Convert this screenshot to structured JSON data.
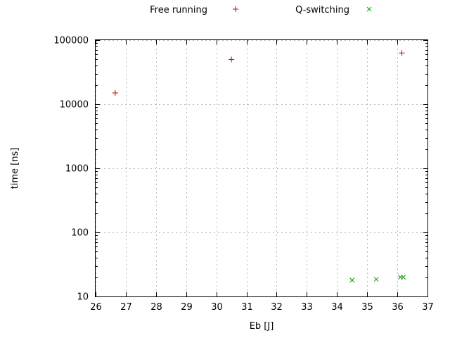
{
  "chart_data": {
    "type": "scatter",
    "title": "",
    "xlabel": "Eb [J]",
    "ylabel": "time [ns]",
    "xlim": [
      26,
      37
    ],
    "ylim": [
      10,
      100000
    ],
    "yscale": "log",
    "grid": true,
    "legend_position": "top-center",
    "xticks": [
      26,
      27,
      28,
      29,
      30,
      31,
      32,
      33,
      34,
      35,
      36,
      37
    ],
    "yticks": [
      10,
      100,
      1000,
      10000,
      100000
    ],
    "ytick_labels": [
      "10",
      "100",
      "1000",
      "10000",
      "100000"
    ],
    "colors": {
      "free_running": "#c00000",
      "q_switching": "#00a000",
      "grid": "#b8b8b8",
      "border": "#000000"
    },
    "series": [
      {
        "name": "Free running",
        "marker": "plus",
        "color": "#c00000",
        "points": [
          [
            26.65,
            15000
          ],
          [
            30.5,
            50000
          ],
          [
            36.15,
            63000
          ]
        ]
      },
      {
        "name": "Q-switching",
        "marker": "cross",
        "color": "#00a000",
        "points": [
          [
            34.5,
            18
          ],
          [
            35.3,
            18.5
          ],
          [
            36.1,
            20
          ],
          [
            36.2,
            20
          ]
        ]
      }
    ]
  }
}
